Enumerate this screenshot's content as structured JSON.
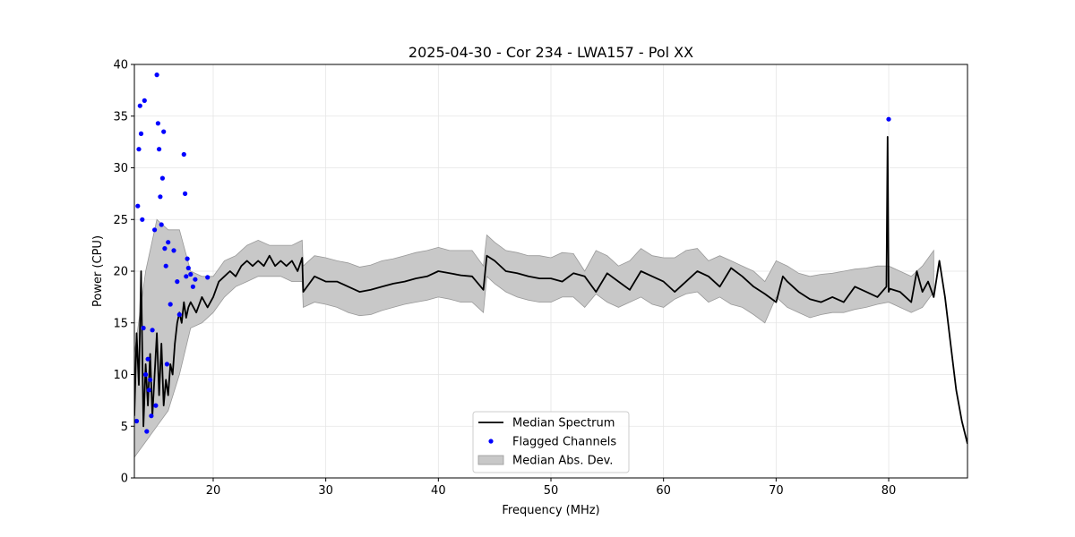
{
  "chart_data": {
    "type": "line",
    "title": "2025-04-30 - Cor 234 - LWA157 - Pol XX",
    "xlabel": "Frequency (MHz)",
    "ylabel": "Power (CPU)",
    "xlim": [
      13,
      87
    ],
    "ylim": [
      0,
      40
    ],
    "xticks": [
      20,
      30,
      40,
      50,
      60,
      70,
      80
    ],
    "yticks": [
      0,
      5,
      10,
      15,
      20,
      25,
      30,
      35,
      40
    ],
    "grid": true,
    "legend_position": "lower-center",
    "colors": {
      "median": "#000000",
      "flagged": "#0000ff",
      "band": "#c8c8c8",
      "band_edge": "#999999"
    },
    "series": [
      {
        "name": "Median Spectrum",
        "type": "line",
        "x": [
          13.0,
          13.2,
          13.4,
          13.6,
          13.8,
          14.0,
          14.2,
          14.4,
          14.6,
          14.8,
          15.0,
          15.2,
          15.4,
          15.6,
          15.8,
          16.0,
          16.2,
          16.4,
          16.6,
          16.8,
          17.0,
          17.2,
          17.4,
          17.6,
          17.8,
          18.0,
          18.5,
          19.0,
          19.5,
          20.0,
          20.5,
          21.0,
          21.5,
          22.0,
          22.5,
          23.0,
          23.5,
          24.0,
          24.5,
          25.0,
          25.5,
          26.0,
          26.5,
          27.0,
          27.5,
          27.9,
          28.0,
          29.0,
          30.0,
          31.0,
          32.0,
          33.0,
          34.0,
          35.0,
          36.0,
          37.0,
          38.0,
          39.0,
          40.0,
          41.0,
          42.0,
          43.0,
          44.0,
          44.3,
          45.0,
          46.0,
          47.0,
          48.0,
          49.0,
          50.0,
          51.0,
          52.0,
          53.0,
          54.0,
          55.0,
          56.0,
          57.0,
          58.0,
          59.0,
          60.0,
          61.0,
          62.0,
          63.0,
          64.0,
          65.0,
          66.0,
          67.0,
          68.0,
          69.0,
          70.0,
          70.6,
          71.0,
          72.0,
          73.0,
          74.0,
          75.0,
          76.0,
          77.0,
          78.0,
          79.0,
          79.8,
          79.9,
          80.0,
          80.1,
          81.0,
          82.0,
          82.5,
          83.0,
          83.5,
          84.0,
          84.5,
          85.0,
          85.5,
          86.0,
          86.5,
          87.0
        ],
        "y": [
          6.0,
          14.0,
          9.0,
          20.0,
          5.0,
          11.0,
          7.0,
          12.0,
          6.0,
          10.0,
          14.0,
          8.0,
          13.0,
          7.0,
          9.5,
          8.0,
          11.0,
          10.0,
          13.0,
          15.0,
          16.0,
          15.0,
          17.0,
          15.5,
          16.5,
          17.0,
          16.0,
          17.5,
          16.5,
          17.5,
          19.0,
          19.5,
          20.0,
          19.5,
          20.5,
          21.0,
          20.5,
          21.0,
          20.5,
          21.5,
          20.5,
          21.0,
          20.5,
          21.0,
          20.0,
          21.3,
          18.0,
          19.5,
          19.0,
          19.0,
          18.5,
          18.0,
          18.2,
          18.5,
          18.8,
          19.0,
          19.3,
          19.5,
          20.0,
          19.8,
          19.6,
          19.5,
          18.2,
          21.5,
          21.0,
          20.0,
          19.8,
          19.5,
          19.3,
          19.3,
          19.0,
          19.8,
          19.5,
          18.0,
          19.8,
          19.0,
          18.2,
          20.0,
          19.5,
          19.0,
          18.0,
          19.0,
          20.0,
          19.5,
          18.5,
          20.3,
          19.5,
          18.5,
          17.8,
          17.0,
          19.5,
          19.0,
          18.0,
          17.3,
          17.0,
          17.5,
          17.0,
          18.5,
          18.0,
          17.5,
          18.5,
          33.0,
          18.0,
          18.3,
          18.0,
          17.0,
          20.0,
          18.0,
          19.0,
          17.5,
          21.0,
          17.5,
          13.0,
          8.5,
          5.5,
          3.3
        ]
      },
      {
        "name": "Flagged Channels",
        "type": "scatter",
        "x": [
          13.2,
          13.3,
          13.4,
          13.5,
          13.6,
          13.7,
          13.8,
          13.9,
          14.0,
          14.1,
          14.2,
          14.3,
          14.4,
          14.5,
          14.6,
          14.8,
          14.9,
          15.0,
          15.1,
          15.2,
          15.3,
          15.4,
          15.5,
          15.6,
          15.7,
          15.8,
          15.9,
          16.0,
          16.2,
          16.5,
          16.8,
          17.0,
          17.4,
          17.5,
          17.6,
          17.7,
          17.8,
          18.0,
          18.2,
          18.4,
          19.5,
          80.0
        ],
        "y": [
          5.5,
          26.3,
          31.8,
          36.0,
          33.3,
          25.0,
          14.5,
          36.5,
          10.0,
          4.5,
          11.5,
          8.5,
          9.5,
          6.0,
          14.3,
          24.0,
          7.0,
          39.0,
          34.3,
          31.8,
          27.2,
          24.5,
          29.0,
          33.5,
          22.2,
          20.5,
          11.0,
          22.8,
          16.8,
          22.0,
          19.0,
          15.8,
          31.3,
          27.5,
          19.5,
          21.2,
          20.3,
          19.7,
          18.5,
          19.2,
          19.4,
          34.7
        ]
      },
      {
        "name": "Median Abs. Dev.",
        "type": "band",
        "x": [
          13.0,
          14.0,
          15.0,
          16.0,
          17.0,
          18.0,
          19.0,
          20.0,
          21.0,
          22.0,
          23.0,
          24.0,
          25.0,
          26.0,
          27.0,
          27.9,
          28.0,
          29.0,
          30.0,
          31.0,
          32.0,
          33.0,
          34.0,
          35.0,
          36.0,
          37.0,
          38.0,
          39.0,
          40.0,
          41.0,
          42.0,
          43.0,
          44.0,
          44.3,
          45.0,
          46.0,
          47.0,
          48.0,
          49.0,
          50.0,
          51.0,
          52.0,
          53.0,
          54.0,
          55.0,
          56.0,
          57.0,
          58.0,
          59.0,
          60.0,
          61.0,
          62.0,
          63.0,
          64.0,
          65.0,
          66.0,
          67.0,
          68.0,
          69.0,
          70.0,
          71.0,
          72.0,
          73.0,
          74.0,
          75.0,
          76.0,
          77.0,
          78.0,
          79.0,
          80.0,
          81.0,
          82.0,
          83.0,
          84.0
        ],
        "lower": [
          2.0,
          3.5,
          5.0,
          6.5,
          10.0,
          14.5,
          15.0,
          16.0,
          17.5,
          18.5,
          19.0,
          19.5,
          19.5,
          19.5,
          19.0,
          19.0,
          16.5,
          17.0,
          16.8,
          16.5,
          16.0,
          15.7,
          15.8,
          16.2,
          16.5,
          16.8,
          17.0,
          17.2,
          17.5,
          17.3,
          17.0,
          17.0,
          16.0,
          19.5,
          18.8,
          18.0,
          17.5,
          17.2,
          17.0,
          17.0,
          17.5,
          17.5,
          16.5,
          17.8,
          17.0,
          16.5,
          17.0,
          17.5,
          16.8,
          16.5,
          17.3,
          17.8,
          18.0,
          17.0,
          17.5,
          16.8,
          16.5,
          15.8,
          15.0,
          17.5,
          16.5,
          16.0,
          15.5,
          15.8,
          16.0,
          16.0,
          16.3,
          16.5,
          16.8,
          17.0,
          16.5,
          16.0,
          16.5,
          18.0
        ],
        "upper": [
          12.0,
          20.0,
          25.0,
          24.0,
          24.0,
          20.0,
          19.5,
          19.5,
          21.0,
          21.5,
          22.5,
          23.0,
          22.5,
          22.5,
          22.5,
          23.0,
          20.5,
          21.5,
          21.3,
          21.0,
          20.8,
          20.4,
          20.6,
          21.0,
          21.2,
          21.5,
          21.8,
          22.0,
          22.3,
          22.0,
          22.0,
          22.0,
          20.5,
          23.5,
          22.8,
          22.0,
          21.8,
          21.5,
          21.5,
          21.3,
          21.8,
          21.7,
          20.0,
          22.0,
          21.5,
          20.5,
          21.0,
          22.2,
          21.5,
          21.3,
          21.3,
          22.0,
          22.2,
          21.0,
          21.5,
          21.0,
          20.5,
          20.0,
          19.0,
          21.0,
          20.5,
          19.8,
          19.5,
          19.7,
          19.8,
          20.0,
          20.2,
          20.3,
          20.5,
          20.5,
          20.0,
          19.5,
          20.5,
          22.0
        ]
      }
    ]
  }
}
